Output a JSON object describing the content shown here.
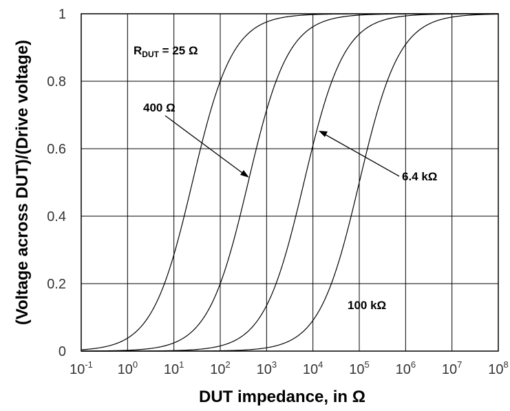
{
  "chart_data": {
    "type": "line",
    "xlabel": "DUT impedance, in Ω",
    "ylabel": "(Voltage across DUT)/(Drive voltage)",
    "x_scale": "log",
    "xlim": [
      0.1,
      100000000
    ],
    "ylim": [
      0,
      1
    ],
    "grid": true,
    "x_ticks": [
      {
        "base": "10",
        "exp": "-1",
        "value": 0.1
      },
      {
        "base": "10",
        "exp": "0",
        "value": 1
      },
      {
        "base": "10",
        "exp": "1",
        "value": 10
      },
      {
        "base": "10",
        "exp": "2",
        "value": 100
      },
      {
        "base": "10",
        "exp": "3",
        "value": 1000
      },
      {
        "base": "10",
        "exp": "4",
        "value": 10000
      },
      {
        "base": "10",
        "exp": "5",
        "value": 100000
      },
      {
        "base": "10",
        "exp": "6",
        "value": 1000000
      },
      {
        "base": "10",
        "exp": "7",
        "value": 10000000
      },
      {
        "base": "10",
        "exp": "8",
        "value": 100000000
      }
    ],
    "y_ticks": [
      "0",
      "0.2",
      "0.4",
      "0.6",
      "0.8",
      "1"
    ],
    "series": [
      {
        "r_dut": 25,
        "x": [
          0.1,
          1,
          10,
          25,
          100,
          1000,
          10000,
          100000000
        ],
        "y": [
          0.004,
          0.038,
          0.286,
          0.5,
          0.8,
          0.976,
          0.998,
          1.0
        ]
      },
      {
        "r_dut": 400,
        "x": [
          0.1,
          1,
          10,
          100,
          400,
          1000,
          10000,
          100000,
          100000000
        ],
        "y": [
          0.0,
          0.002,
          0.024,
          0.2,
          0.5,
          0.714,
          0.962,
          0.996,
          1.0
        ]
      },
      {
        "r_dut": 6400,
        "x": [
          0.1,
          10,
          100,
          1000,
          6400,
          10000,
          100000,
          1000000,
          100000000
        ],
        "y": [
          0.0,
          0.002,
          0.015,
          0.135,
          0.5,
          0.61,
          0.94,
          0.994,
          1.0
        ]
      },
      {
        "r_dut": 100000,
        "x": [
          0.1,
          100,
          1000,
          10000,
          100000,
          1000000,
          10000000,
          100000000
        ],
        "y": [
          0.0,
          0.001,
          0.01,
          0.091,
          0.5,
          0.909,
          0.99,
          0.999
        ]
      }
    ],
    "annotations": [
      {
        "text": "R",
        "sub": "DUT",
        "suffix": " = 25 Ω"
      },
      {
        "text": "400 Ω"
      },
      {
        "text": "6.4 kΩ"
      },
      {
        "text": "100 kΩ"
      }
    ]
  }
}
